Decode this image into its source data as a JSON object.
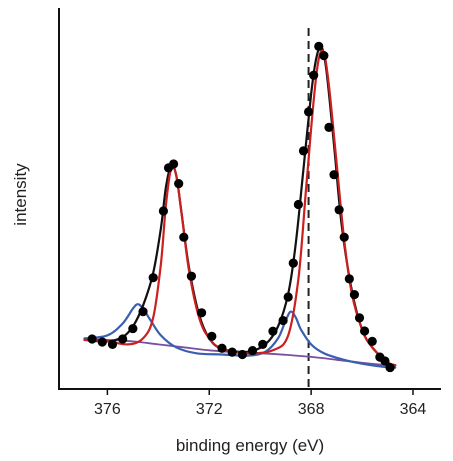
{
  "chart_data": {
    "type": "scatter",
    "title": "",
    "xlabel": "binding energy (eV)",
    "ylabel": "intensity",
    "x_reversed": true,
    "xlim": [
      377.9,
      362.9
    ],
    "ylim": [
      -0.12,
      1.16
    ],
    "x_ticks": [
      376,
      372,
      368,
      364
    ],
    "x_tick_labels": [
      "376",
      "372",
      "368",
      "364"
    ],
    "y_ticks_shown": false,
    "grid": false,
    "legend": "none",
    "reference_line": {
      "x": 368.1,
      "style": "dashed",
      "color": "#222222"
    },
    "series": [
      {
        "kind": "points",
        "color": "#000000",
        "points": [
          [
            376.6,
            0.048
          ],
          [
            376.2,
            0.038
          ],
          [
            375.8,
            0.03
          ],
          [
            375.4,
            0.048
          ],
          [
            375.0,
            0.083
          ],
          [
            374.6,
            0.14
          ],
          [
            374.2,
            0.254
          ],
          [
            373.8,
            0.478
          ],
          [
            373.6,
            0.623
          ],
          [
            373.4,
            0.636
          ],
          [
            373.2,
            0.57
          ],
          [
            373.0,
            0.39
          ],
          [
            372.7,
            0.259
          ],
          [
            372.3,
            0.136
          ],
          [
            371.9,
            0.057
          ],
          [
            371.5,
            0.017
          ],
          [
            371.1,
            0.004
          ],
          [
            370.7,
            -0.004
          ],
          [
            370.3,
            0.009
          ],
          [
            369.9,
            0.03
          ],
          [
            369.5,
            0.074
          ],
          [
            369.1,
            0.11
          ],
          [
            368.9,
            0.189
          ],
          [
            368.7,
            0.303
          ],
          [
            368.5,
            0.5
          ],
          [
            368.3,
            0.68
          ],
          [
            368.1,
            0.811
          ],
          [
            367.9,
            0.934
          ],
          [
            367.7,
            1.031
          ],
          [
            367.5,
            1.0
          ],
          [
            367.3,
            0.759
          ],
          [
            367.1,
            0.6
          ],
          [
            366.9,
            0.482
          ],
          [
            366.7,
            0.39
          ],
          [
            366.5,
            0.25
          ],
          [
            366.3,
            0.197
          ],
          [
            366.1,
            0.119
          ],
          [
            365.9,
            0.075
          ],
          [
            365.6,
            0.04
          ],
          [
            365.3,
            -0.013
          ],
          [
            365.1,
            -0.026
          ],
          [
            364.9,
            -0.048
          ]
        ]
      },
      {
        "kind": "fit",
        "color": "#cc1f1f",
        "points": [
          [
            376.9,
            0.045
          ],
          [
            376.0,
            0.04
          ],
          [
            375.2,
            0.03
          ],
          [
            374.6,
            0.05
          ],
          [
            374.2,
            0.12
          ],
          [
            373.9,
            0.3
          ],
          [
            373.7,
            0.5
          ],
          [
            373.5,
            0.62
          ],
          [
            373.3,
            0.6
          ],
          [
            373.1,
            0.48
          ],
          [
            372.8,
            0.28
          ],
          [
            372.4,
            0.12
          ],
          [
            372.0,
            0.05
          ],
          [
            371.5,
            0.015
          ],
          [
            370.5,
            0.0
          ],
          [
            369.5,
            0.01
          ],
          [
            368.9,
            0.06
          ],
          [
            368.5,
            0.25
          ],
          [
            368.2,
            0.55
          ],
          [
            367.9,
            0.85
          ],
          [
            367.7,
            0.99
          ],
          [
            367.5,
            1.01
          ],
          [
            367.3,
            0.9
          ],
          [
            367.0,
            0.64
          ],
          [
            366.7,
            0.38
          ],
          [
            366.4,
            0.2
          ],
          [
            366.0,
            0.08
          ],
          [
            365.6,
            0.02
          ],
          [
            365.0,
            -0.03
          ],
          [
            364.7,
            -0.04
          ]
        ]
      },
      {
        "kind": "envelope",
        "color": "#111111",
        "points": [
          [
            376.9,
            0.045
          ],
          [
            376.0,
            0.04
          ],
          [
            375.4,
            0.055
          ],
          [
            375.0,
            0.09
          ],
          [
            374.6,
            0.16
          ],
          [
            374.2,
            0.27
          ],
          [
            373.9,
            0.42
          ],
          [
            373.7,
            0.56
          ],
          [
            373.5,
            0.63
          ],
          [
            373.3,
            0.6
          ],
          [
            373.1,
            0.48
          ],
          [
            372.8,
            0.29
          ],
          [
            372.4,
            0.13
          ],
          [
            372.0,
            0.05
          ],
          [
            371.5,
            0.015
          ],
          [
            370.5,
            0.005
          ],
          [
            369.8,
            0.03
          ],
          [
            369.3,
            0.09
          ],
          [
            368.9,
            0.2
          ],
          [
            368.6,
            0.37
          ],
          [
            368.3,
            0.62
          ],
          [
            368.0,
            0.87
          ],
          [
            367.8,
            0.99
          ],
          [
            367.6,
            1.03
          ],
          [
            367.4,
            0.95
          ],
          [
            367.1,
            0.7
          ],
          [
            366.8,
            0.43
          ],
          [
            366.4,
            0.21
          ],
          [
            366.0,
            0.08
          ],
          [
            365.6,
            0.02
          ],
          [
            365.0,
            -0.03
          ],
          [
            364.7,
            -0.04
          ]
        ]
      },
      {
        "kind": "component",
        "color": "#3a5fb0",
        "points": [
          [
            376.9,
            0.05
          ],
          [
            376.0,
            0.06
          ],
          [
            375.4,
            0.1
          ],
          [
            375.0,
            0.15
          ],
          [
            374.8,
            0.165
          ],
          [
            374.6,
            0.15
          ],
          [
            374.3,
            0.11
          ],
          [
            373.9,
            0.06
          ],
          [
            373.3,
            0.02
          ],
          [
            372.5,
            0.0
          ],
          [
            371.5,
            -0.004
          ],
          [
            370.5,
            -0.008
          ],
          [
            369.8,
            0.005
          ],
          [
            369.3,
            0.05
          ],
          [
            369.0,
            0.11
          ],
          [
            368.8,
            0.14
          ],
          [
            368.6,
            0.12
          ],
          [
            368.4,
            0.08
          ],
          [
            368.0,
            0.03
          ],
          [
            367.5,
            0.0
          ],
          [
            366.8,
            -0.02
          ],
          [
            366.0,
            -0.035
          ],
          [
            365.2,
            -0.045
          ],
          [
            364.7,
            -0.048
          ]
        ]
      },
      {
        "kind": "background",
        "color": "#7a4fa0",
        "points": [
          [
            376.9,
            0.048
          ],
          [
            376.0,
            0.045
          ],
          [
            375.0,
            0.04
          ],
          [
            374.0,
            0.03
          ],
          [
            373.0,
            0.02
          ],
          [
            372.0,
            0.01
          ],
          [
            371.0,
            0.004
          ],
          [
            370.0,
            0.0
          ],
          [
            369.0,
            -0.005
          ],
          [
            368.0,
            -0.012
          ],
          [
            367.0,
            -0.022
          ],
          [
            366.0,
            -0.032
          ],
          [
            365.0,
            -0.04
          ],
          [
            364.7,
            -0.042
          ]
        ]
      }
    ]
  }
}
